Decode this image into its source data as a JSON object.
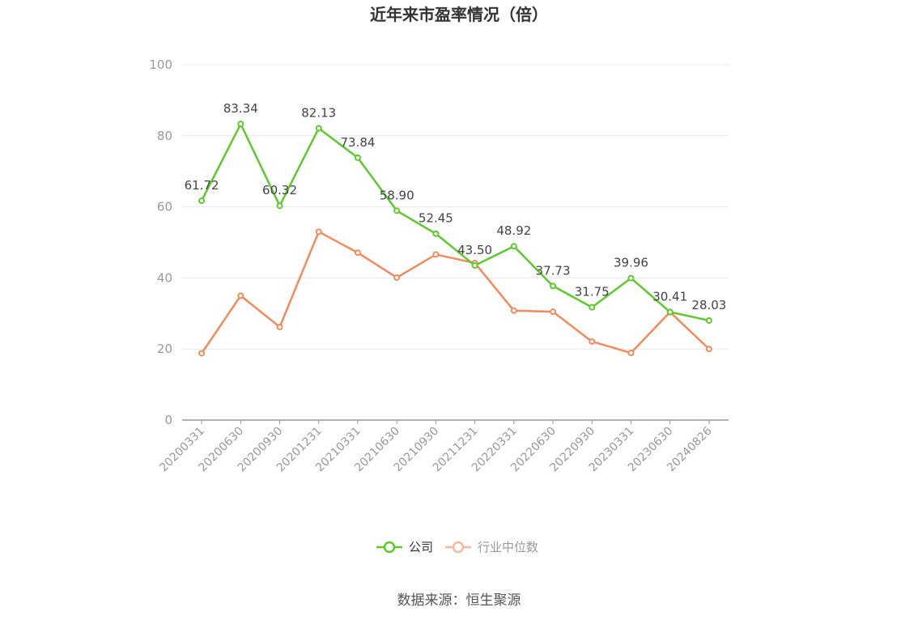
{
  "chart_data": {
    "type": "line",
    "title": "近年来市盈率情况（倍）",
    "categories": [
      "20200331",
      "20200630",
      "20200930",
      "20201231",
      "20210331",
      "20210630",
      "20210930",
      "20211231",
      "20220331",
      "20220630",
      "20220930",
      "20230331",
      "20230630",
      "20240826"
    ],
    "ylim": [
      0,
      100
    ],
    "yticks": [
      0,
      20,
      40,
      60,
      80,
      100
    ],
    "grid": true,
    "legend_position": "bottom",
    "series": [
      {
        "name": "公司",
        "color": "#5ec82d",
        "values": [
          61.72,
          83.34,
          60.32,
          82.13,
          73.84,
          58.9,
          52.45,
          43.5,
          48.92,
          37.73,
          31.75,
          39.96,
          30.41,
          28.03
        ],
        "labels": [
          "61.72",
          "83.34",
          "60.32",
          "82.13",
          "73.84",
          "58.90",
          "52.45",
          "43.50",
          "48.92",
          "37.73",
          "31.75",
          "39.96",
          "30.41",
          "28.03"
        ]
      },
      {
        "name": "行业中位数",
        "color": "#f28b5c",
        "values": [
          18.8,
          35.0,
          26.2,
          53.0,
          47.1,
          40.1,
          46.6,
          44.2,
          30.8,
          30.5,
          22.1,
          18.9,
          30.4,
          20.0
        ]
      }
    ]
  },
  "source": "数据来源：恒生聚源"
}
